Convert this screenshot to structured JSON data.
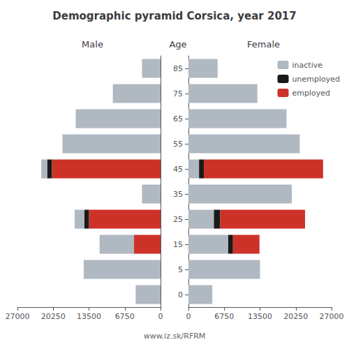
{
  "chart_data": [
    {
      "type": "bar",
      "orientation": "horizontal",
      "stacked": true,
      "title": "Demographic pyramid Corsica, year 2017",
      "xlabel": "Male",
      "categories": [
        "0",
        "5",
        "15",
        "25",
        "35",
        "45",
        "55",
        "65",
        "75",
        "85"
      ],
      "xlim": [
        27000,
        0
      ],
      "xticks": [
        0,
        6750,
        13500,
        20250,
        27000
      ],
      "grid": false,
      "tick_labels": "x",
      "series": [
        {
          "name": "employed",
          "color": "#cd3228",
          "values": [
            0,
            0,
            5000,
            13500,
            0,
            20500,
            0,
            0,
            0,
            0
          ]
        },
        {
          "name": "unemployed",
          "color": "#1a1a1a",
          "values": [
            0,
            0,
            0,
            900,
            0,
            900,
            0,
            0,
            0,
            0
          ]
        },
        {
          "name": "inactive",
          "color": "#b0b8c1",
          "values": [
            4700,
            14500,
            6500,
            1800,
            3500,
            1100,
            18500,
            16000,
            9000,
            3500
          ]
        }
      ]
    },
    {
      "type": "bar",
      "orientation": "horizontal",
      "stacked": true,
      "xlabel": "Female",
      "ylabel": "Age",
      "categories": [
        "0",
        "5",
        "15",
        "25",
        "35",
        "45",
        "55",
        "65",
        "75",
        "85"
      ],
      "xlim": [
        0,
        27000
      ],
      "xticks": [
        0,
        6750,
        13500,
        20250,
        27000
      ],
      "grid": false,
      "legend": "upper right",
      "annotations": [
        "www.iz.sk/RFRM"
      ],
      "series": [
        {
          "name": "inactive",
          "color": "#b0b8c1",
          "values": [
            4500,
            13500,
            7500,
            4800,
            19500,
            2000,
            21000,
            18500,
            13000,
            5500
          ]
        },
        {
          "name": "unemployed",
          "color": "#1a1a1a",
          "values": [
            0,
            0,
            900,
            1200,
            0,
            900,
            0,
            0,
            0,
            0
          ]
        },
        {
          "name": "employed",
          "color": "#cd3228",
          "values": [
            0,
            0,
            5000,
            16000,
            0,
            22500,
            0,
            0,
            0,
            0
          ]
        }
      ]
    }
  ]
}
